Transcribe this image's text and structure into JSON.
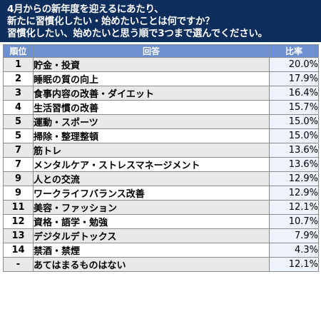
{
  "header": {
    "line1": "4月からの新年度を迎えるにあたり、",
    "line2": "新たに習慣化したい・始めたいことは何ですか？",
    "line3": "習慣化したい、始めたいと思う順で3つまで選んでください。"
  },
  "table": {
    "columns": {
      "rank": "順位",
      "answer": "回答",
      "rate": "比率"
    },
    "rows": [
      {
        "rank": "1",
        "answer": "貯金・投資",
        "rate": "20.0%"
      },
      {
        "rank": "2",
        "answer": "睡眠の質の向上",
        "rate": "17.9%"
      },
      {
        "rank": "3",
        "answer": "食事内容の改善・ダイエット",
        "rate": "16.4%"
      },
      {
        "rank": "4",
        "answer": "生活習慣の改善",
        "rate": "15.7%"
      },
      {
        "rank": "5",
        "answer": "運動・スポーツ",
        "rate": "15.0%"
      },
      {
        "rank": "5",
        "answer": "掃除・整理整頓",
        "rate": "15.0%"
      },
      {
        "rank": "7",
        "answer": "筋トレ",
        "rate": "13.6%"
      },
      {
        "rank": "7",
        "answer": "メンタルケア・ストレスマネージメント",
        "rate": "13.6%"
      },
      {
        "rank": "9",
        "answer": "人との交流",
        "rate": "12.9%"
      },
      {
        "rank": "9",
        "answer": "ワークライフバランス改善",
        "rate": "12.9%"
      },
      {
        "rank": "11",
        "answer": "美容・ファッション",
        "rate": "12.1%"
      },
      {
        "rank": "12",
        "answer": "資格・語学・勉強",
        "rate": "10.7%"
      },
      {
        "rank": "13",
        "answer": "デジタルデトックス",
        "rate": "7.9%"
      },
      {
        "rank": "14",
        "answer": "禁酒・禁煙",
        "rate": "4.3%"
      },
      {
        "rank": "-",
        "answer": "あてはまるものはない",
        "rate": "12.1%"
      }
    ]
  }
}
